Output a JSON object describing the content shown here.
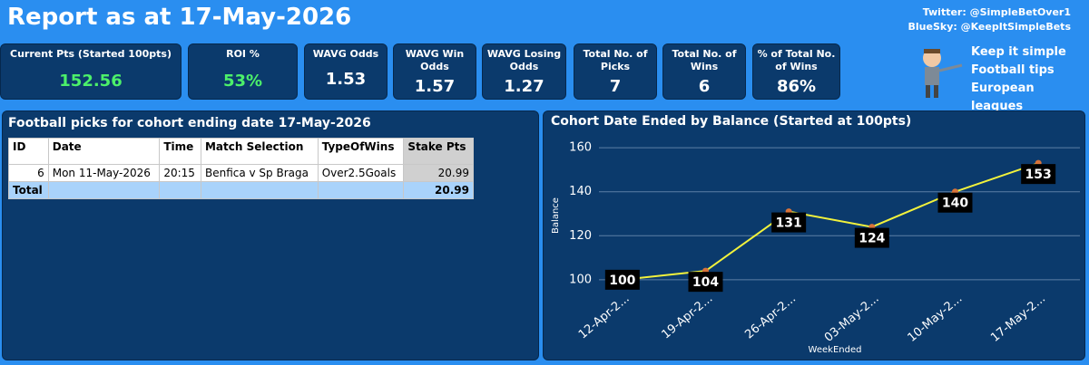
{
  "header": {
    "title": "Report as at 17-May-2026",
    "twitter": "Twitter: @SimpleBetOver1",
    "bluesky": "BlueSky: @KeepItSimpleBets"
  },
  "kpis": [
    {
      "label": "Current Pts (Started 100pts)",
      "value": "152.56",
      "color": "#4cf06a"
    },
    {
      "label": "ROI %",
      "value": "53%",
      "color": "#4cf06a"
    },
    {
      "label": "WAVG Odds",
      "value": "1.53",
      "color": "#ffffff"
    },
    {
      "label": "WAVG Win Odds",
      "value": "1.57",
      "color": "#ffffff"
    },
    {
      "label": "WAVG Losing Odds",
      "value": "1.27",
      "color": "#ffffff"
    },
    {
      "label": "Total No. of Picks",
      "value": "7",
      "color": "#ffffff"
    },
    {
      "label": "Total No. of Wins",
      "value": "6",
      "color": "#ffffff"
    },
    {
      "label": "% of Total No. of Wins",
      "value": "86%",
      "color": "#ffffff"
    }
  ],
  "tagline": [
    "Keep it simple",
    "Football tips",
    "European leagues"
  ],
  "table": {
    "title": "Football picks for cohort ending date 17-May-2026",
    "columns": [
      "ID",
      "Date",
      "Time",
      "Match Selection",
      "TypeOfWins",
      "Stake Pts"
    ],
    "rows": [
      [
        "6",
        "Mon 11-May-2026",
        "20:15",
        "Benfica v Sp Braga",
        "Over2.5Goals",
        "20.99"
      ]
    ],
    "total_label": "Total",
    "total_value": "20.99"
  },
  "chart_data": {
    "type": "line",
    "title": "Cohort Date Ended by Balance (Started at 100pts)",
    "x_label": "WeekEnded",
    "y_label": "Balance",
    "categories": [
      "12-Apr-2...",
      "19-Apr-2...",
      "26-Apr-2...",
      "03-May-2...",
      "10-May-2...",
      "17-May-2..."
    ],
    "series": [
      {
        "name": "Balance",
        "color": "#f2f23c",
        "marker_color": "#d9733a",
        "values": [
          100,
          104,
          131,
          124,
          140,
          153
        ]
      }
    ],
    "ylim": [
      95,
      165
    ],
    "yticks": [
      100,
      120,
      140,
      160
    ],
    "grid": true
  }
}
